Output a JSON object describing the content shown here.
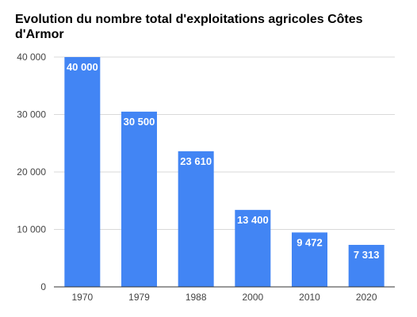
{
  "chart_data": {
    "type": "bar",
    "title": "Evolution du nombre total d'exploitations agricoles Côtes d'Armor",
    "categories": [
      "1970",
      "1979",
      "1988",
      "2000",
      "2010",
      "2020"
    ],
    "values": [
      40000,
      30500,
      23610,
      13400,
      9472,
      7313
    ],
    "data_labels": [
      "40 000",
      "30 500",
      "23 610",
      "13 400",
      "9 472",
      "7 313"
    ],
    "y_ticks": [
      0,
      10000,
      20000,
      30000,
      40000
    ],
    "y_tick_labels": [
      "0",
      "10 000",
      "20 000",
      "30 000",
      "40 000"
    ],
    "ylim": [
      0,
      40000
    ],
    "xlabel": "",
    "ylabel": "",
    "grid": true,
    "legend": "none",
    "bar_color": "#4285F4"
  }
}
